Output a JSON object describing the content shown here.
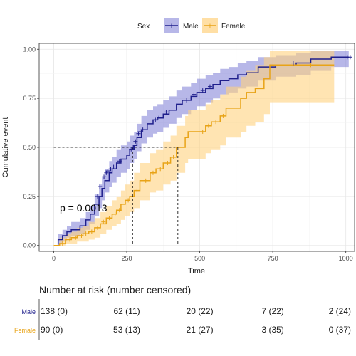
{
  "chart_data": {
    "type": "line",
    "subtype": "kaplan-meier cumulative event",
    "title": "",
    "xlabel": "Time",
    "ylabel": "Cumulative event",
    "xlim": [
      -50,
      1030
    ],
    "ylim": [
      -0.03,
      1.03
    ],
    "x_ticks": [
      0,
      250,
      500,
      750,
      1000
    ],
    "y_ticks": [
      0.0,
      0.25,
      0.5,
      0.75,
      1.0
    ],
    "x_tick_labels": [
      "0",
      "250",
      "500",
      "750",
      "1000"
    ],
    "y_tick_labels": [
      "0.00",
      "0.25",
      "0.50",
      "0.75",
      "1.00"
    ],
    "grid": true,
    "legend": {
      "title": "Sex",
      "position": "top",
      "entries": [
        "Male",
        "Female"
      ]
    },
    "annotation": {
      "text": "p = 0.0013",
      "x": 20,
      "y": 0.18
    },
    "median_lines": [
      {
        "series": "Male",
        "x": 270,
        "y": 0.5
      },
      {
        "series": "Female",
        "x": 425,
        "y": 0.5
      }
    ],
    "series": [
      {
        "name": "Male",
        "color": "#1f1f8c",
        "band_color": "#7b7bd6",
        "steps": [
          [
            0,
            0
          ],
          [
            15,
            0.03
          ],
          [
            30,
            0.05
          ],
          [
            45,
            0.07
          ],
          [
            60,
            0.08
          ],
          [
            90,
            0.1
          ],
          [
            110,
            0.13
          ],
          [
            125,
            0.16
          ],
          [
            140,
            0.21
          ],
          [
            155,
            0.25
          ],
          [
            165,
            0.29
          ],
          [
            175,
            0.33
          ],
          [
            190,
            0.37
          ],
          [
            200,
            0.39
          ],
          [
            215,
            0.42
          ],
          [
            230,
            0.44
          ],
          [
            250,
            0.46
          ],
          [
            260,
            0.49
          ],
          [
            275,
            0.51
          ],
          [
            285,
            0.55
          ],
          [
            300,
            0.59
          ],
          [
            320,
            0.62
          ],
          [
            340,
            0.64
          ],
          [
            355,
            0.65
          ],
          [
            375,
            0.67
          ],
          [
            395,
            0.69
          ],
          [
            420,
            0.72
          ],
          [
            440,
            0.74
          ],
          [
            470,
            0.76
          ],
          [
            490,
            0.78
          ],
          [
            520,
            0.8
          ],
          [
            545,
            0.82
          ],
          [
            570,
            0.84
          ],
          [
            600,
            0.85
          ],
          [
            630,
            0.87
          ],
          [
            660,
            0.88
          ],
          [
            700,
            0.91
          ],
          [
            760,
            0.92
          ],
          [
            830,
            0.93
          ],
          [
            880,
            0.95
          ],
          [
            950,
            0.96
          ],
          [
            1010,
            0.96
          ]
        ],
        "band": [
          [
            0,
            0,
            0
          ],
          [
            15,
            0.01,
            0.06
          ],
          [
            30,
            0.02,
            0.08
          ],
          [
            45,
            0.04,
            0.1
          ],
          [
            60,
            0.05,
            0.12
          ],
          [
            90,
            0.06,
            0.14
          ],
          [
            110,
            0.08,
            0.17
          ],
          [
            125,
            0.11,
            0.2
          ],
          [
            140,
            0.15,
            0.26
          ],
          [
            155,
            0.19,
            0.31
          ],
          [
            165,
            0.23,
            0.35
          ],
          [
            175,
            0.27,
            0.39
          ],
          [
            190,
            0.3,
            0.43
          ],
          [
            200,
            0.32,
            0.45
          ],
          [
            215,
            0.35,
            0.49
          ],
          [
            230,
            0.37,
            0.51
          ],
          [
            250,
            0.39,
            0.53
          ],
          [
            260,
            0.42,
            0.56
          ],
          [
            275,
            0.44,
            0.58
          ],
          [
            285,
            0.48,
            0.62
          ],
          [
            300,
            0.52,
            0.66
          ],
          [
            320,
            0.55,
            0.69
          ],
          [
            340,
            0.57,
            0.71
          ],
          [
            355,
            0.58,
            0.72
          ],
          [
            375,
            0.6,
            0.74
          ],
          [
            395,
            0.62,
            0.76
          ],
          [
            420,
            0.65,
            0.79
          ],
          [
            440,
            0.67,
            0.81
          ],
          [
            470,
            0.69,
            0.83
          ],
          [
            490,
            0.71,
            0.85
          ],
          [
            520,
            0.73,
            0.87
          ],
          [
            545,
            0.75,
            0.88
          ],
          [
            570,
            0.77,
            0.9
          ],
          [
            600,
            0.78,
            0.91
          ],
          [
            630,
            0.8,
            0.93
          ],
          [
            660,
            0.81,
            0.94
          ],
          [
            700,
            0.84,
            0.96
          ],
          [
            760,
            0.86,
            0.97
          ],
          [
            830,
            0.87,
            0.98
          ],
          [
            880,
            0.89,
            0.99
          ],
          [
            950,
            0.91,
            0.99
          ],
          [
            1010,
            0.91,
            0.99
          ]
        ],
        "censored": [
          [
            150,
            0.25
          ],
          [
            158,
            0.3
          ],
          [
            172,
            0.35
          ],
          [
            180,
            0.37
          ],
          [
            185,
            0.38
          ],
          [
            195,
            0.39
          ],
          [
            205,
            0.4
          ],
          [
            225,
            0.43
          ],
          [
            265,
            0.49
          ],
          [
            272,
            0.5
          ],
          [
            280,
            0.53
          ],
          [
            290,
            0.57
          ],
          [
            295,
            0.58
          ],
          [
            305,
            0.59
          ],
          [
            348,
            0.64
          ],
          [
            360,
            0.65
          ],
          [
            385,
            0.68
          ],
          [
            455,
            0.74
          ],
          [
            480,
            0.77
          ],
          [
            510,
            0.79
          ],
          [
            535,
            0.81
          ],
          [
            820,
            0.93
          ],
          [
            1005,
            0.96
          ],
          [
            1015,
            0.96
          ]
        ],
        "risk": [
          "138 (0)",
          "62 (11)",
          "20 (22)",
          "7 (22)",
          "2 (24)"
        ]
      },
      {
        "name": "Female",
        "color": "#e8a317",
        "band_color": "#ffd27f",
        "steps": [
          [
            0,
            0
          ],
          [
            20,
            0.01
          ],
          [
            40,
            0.03
          ],
          [
            60,
            0.04
          ],
          [
            80,
            0.05
          ],
          [
            100,
            0.06
          ],
          [
            120,
            0.07
          ],
          [
            140,
            0.09
          ],
          [
            160,
            0.11
          ],
          [
            180,
            0.14
          ],
          [
            200,
            0.16
          ],
          [
            215,
            0.18
          ],
          [
            230,
            0.21
          ],
          [
            245,
            0.23
          ],
          [
            260,
            0.25
          ],
          [
            275,
            0.28
          ],
          [
            295,
            0.33
          ],
          [
            330,
            0.37
          ],
          [
            350,
            0.39
          ],
          [
            375,
            0.42
          ],
          [
            400,
            0.45
          ],
          [
            420,
            0.5
          ],
          [
            450,
            0.55
          ],
          [
            460,
            0.58
          ],
          [
            520,
            0.61
          ],
          [
            540,
            0.63
          ],
          [
            570,
            0.66
          ],
          [
            590,
            0.7
          ],
          [
            640,
            0.75
          ],
          [
            660,
            0.78
          ],
          [
            690,
            0.8
          ],
          [
            720,
            0.85
          ],
          [
            740,
            0.92
          ],
          [
            960,
            0.92
          ]
        ],
        "band": [
          [
            0,
            0,
            0
          ],
          [
            20,
            0,
            0.04
          ],
          [
            40,
            0.01,
            0.06
          ],
          [
            60,
            0.01,
            0.07
          ],
          [
            80,
            0.02,
            0.09
          ],
          [
            100,
            0.02,
            0.1
          ],
          [
            120,
            0.03,
            0.12
          ],
          [
            140,
            0.04,
            0.14
          ],
          [
            160,
            0.06,
            0.17
          ],
          [
            180,
            0.08,
            0.2
          ],
          [
            200,
            0.1,
            0.23
          ],
          [
            215,
            0.11,
            0.25
          ],
          [
            230,
            0.13,
            0.28
          ],
          [
            245,
            0.15,
            0.31
          ],
          [
            260,
            0.17,
            0.33
          ],
          [
            275,
            0.19,
            0.37
          ],
          [
            295,
            0.23,
            0.42
          ],
          [
            330,
            0.27,
            0.47
          ],
          [
            350,
            0.28,
            0.49
          ],
          [
            375,
            0.31,
            0.53
          ],
          [
            400,
            0.33,
            0.56
          ],
          [
            420,
            0.37,
            0.61
          ],
          [
            450,
            0.42,
            0.66
          ],
          [
            460,
            0.44,
            0.69
          ],
          [
            520,
            0.47,
            0.72
          ],
          [
            540,
            0.49,
            0.74
          ],
          [
            570,
            0.51,
            0.77
          ],
          [
            590,
            0.55,
            0.81
          ],
          [
            640,
            0.58,
            0.86
          ],
          [
            660,
            0.61,
            0.89
          ],
          [
            690,
            0.63,
            0.92
          ],
          [
            720,
            0.67,
            0.96
          ],
          [
            740,
            0.73,
            0.99
          ],
          [
            960,
            0.73,
            0.99
          ]
        ],
        "censored": [
          [
            30,
            0.01
          ],
          [
            55,
            0.03
          ],
          [
            75,
            0.04
          ],
          [
            95,
            0.05
          ],
          [
            110,
            0.06
          ],
          [
            130,
            0.07
          ],
          [
            150,
            0.09
          ],
          [
            170,
            0.12
          ],
          [
            190,
            0.14
          ],
          [
            210,
            0.16
          ],
          [
            225,
            0.18
          ],
          [
            255,
            0.23
          ],
          [
            285,
            0.28
          ],
          [
            315,
            0.33
          ],
          [
            340,
            0.37
          ],
          [
            365,
            0.39
          ],
          [
            390,
            0.42
          ],
          [
            410,
            0.45
          ],
          [
            510,
            0.58
          ],
          [
            530,
            0.61
          ],
          [
            555,
            0.63
          ],
          [
            580,
            0.66
          ],
          [
            880,
            0.92
          ]
        ],
        "risk": [
          "90 (0)",
          "53 (13)",
          "21 (27)",
          "3 (35)",
          "0 (37)"
        ]
      }
    ],
    "risk_table": {
      "title": "Number at risk (number censored)",
      "times": [
        0,
        250,
        500,
        750,
        1000
      ]
    }
  }
}
